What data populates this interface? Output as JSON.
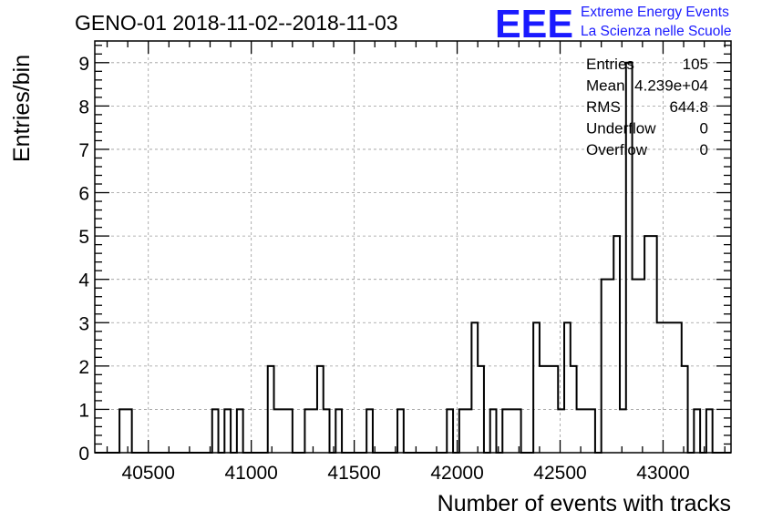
{
  "chart_data": {
    "type": "bar",
    "style": "step-histogram",
    "title": "GENO-01 2018-11-02--2018-11-03",
    "xlabel": "Number of events with tracks",
    "ylabel": "Entries/bin",
    "xlim": [
      40240,
      43330
    ],
    "ylim": [
      0,
      9.5
    ],
    "bin_width": 30,
    "first_bin_low": 40240,
    "counts": [
      0,
      0,
      0,
      0,
      1,
      1,
      0,
      0,
      0,
      0,
      0,
      0,
      0,
      0,
      0,
      0,
      0,
      0,
      0,
      1,
      0,
      1,
      0,
      1,
      0,
      0,
      0,
      0,
      2,
      1,
      1,
      1,
      0,
      0,
      1,
      1,
      2,
      1,
      0,
      1,
      0,
      0,
      0,
      0,
      1,
      0,
      0,
      0,
      0,
      1,
      0,
      0,
      0,
      0,
      0,
      0,
      0,
      1,
      0,
      1,
      1,
      3,
      2,
      0,
      1,
      0,
      1,
      1,
      1,
      0,
      0,
      3,
      2,
      2,
      2,
      1,
      3,
      2,
      1,
      1,
      1,
      0,
      4,
      4,
      5,
      1,
      9,
      4,
      4,
      5,
      5,
      3,
      3,
      3,
      3,
      2,
      0,
      1,
      0,
      1,
      0,
      0,
      0
    ],
    "x_ticks": [
      40500,
      41000,
      41500,
      42000,
      42500,
      43000
    ],
    "x_tick_labels": [
      "40500",
      "41000",
      "41500",
      "42000",
      "42500",
      "43000"
    ],
    "y_ticks": [
      0,
      1,
      2,
      3,
      4,
      5,
      6,
      7,
      8,
      9
    ],
    "y_tick_labels": [
      "0",
      "1",
      "2",
      "3",
      "4",
      "5",
      "6",
      "7",
      "8",
      "9"
    ],
    "grid": true,
    "stats_box": {
      "position": "top-right",
      "rows": [
        {
          "label": "Entries",
          "value": "105"
        },
        {
          "label": "Mean",
          "value": "4.239e+04"
        },
        {
          "label": "RMS",
          "value": "644.8"
        },
        {
          "label": "Underflow",
          "value": "0"
        },
        {
          "label": "Overflow",
          "value": "0"
        }
      ]
    }
  },
  "brand": {
    "logo_text": "EEE",
    "line1": "Extreme Energy Events",
    "line2": "La Scienza nelle Scuole",
    "color": "#1a1aff"
  }
}
